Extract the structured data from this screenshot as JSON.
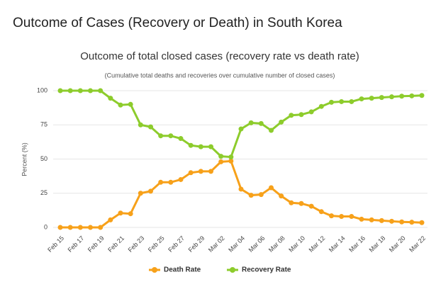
{
  "page_title": "Outcome of Cases (Recovery or Death) in South Korea",
  "chart_data": {
    "type": "line",
    "title": "Outcome of total closed cases (recovery rate vs death rate)",
    "subtitle": "(Cumulative total deaths and recoveries over cumulative number of closed cases)",
    "y_label": "Percent (%)",
    "categories": [
      "Feb 15",
      null,
      "Feb 17",
      null,
      "Feb 19",
      null,
      "Feb 21",
      null,
      "Feb 23",
      null,
      "Feb 25",
      null,
      "Feb 27",
      null,
      "Feb 29",
      null,
      "Mar 02",
      null,
      "Mar 04",
      null,
      "Mar 06",
      null,
      "Mar 08",
      null,
      "Mar 10",
      null,
      "Mar 12",
      null,
      "Mar 14",
      null,
      "Mar 16",
      null,
      "Mar 18",
      null,
      "Mar 20",
      null,
      "Mar 22"
    ],
    "series": [
      {
        "name": "Death Rate",
        "color": "#f7a11a",
        "values": [
          0,
          0,
          0,
          0,
          0,
          5.5,
          10.5,
          10,
          25,
          26.5,
          33,
          33,
          35,
          40,
          41,
          41,
          48,
          48.5,
          28,
          23.5,
          24,
          29,
          23,
          18,
          17.5,
          15.5,
          11.5,
          8.5,
          8,
          8,
          6,
          5.5,
          5,
          4.5,
          4,
          3.8,
          3.5
        ]
      },
      {
        "name": "Recovery Rate",
        "color": "#8dcc2c",
        "values": [
          100,
          100,
          100,
          100,
          100,
          94.5,
          89.5,
          90,
          75,
          73.5,
          67,
          67,
          65,
          60,
          59,
          59,
          52,
          51.5,
          72,
          76.5,
          76,
          71,
          77,
          82,
          82.5,
          84.5,
          88.5,
          91.5,
          92,
          92,
          94,
          94.5,
          95,
          95.5,
          96,
          96.2,
          96.5
        ]
      }
    ],
    "ylim": [
      0,
      100
    ],
    "yticks": [
      0,
      25,
      50,
      75,
      100
    ],
    "grid": true,
    "legend": "bottom"
  }
}
